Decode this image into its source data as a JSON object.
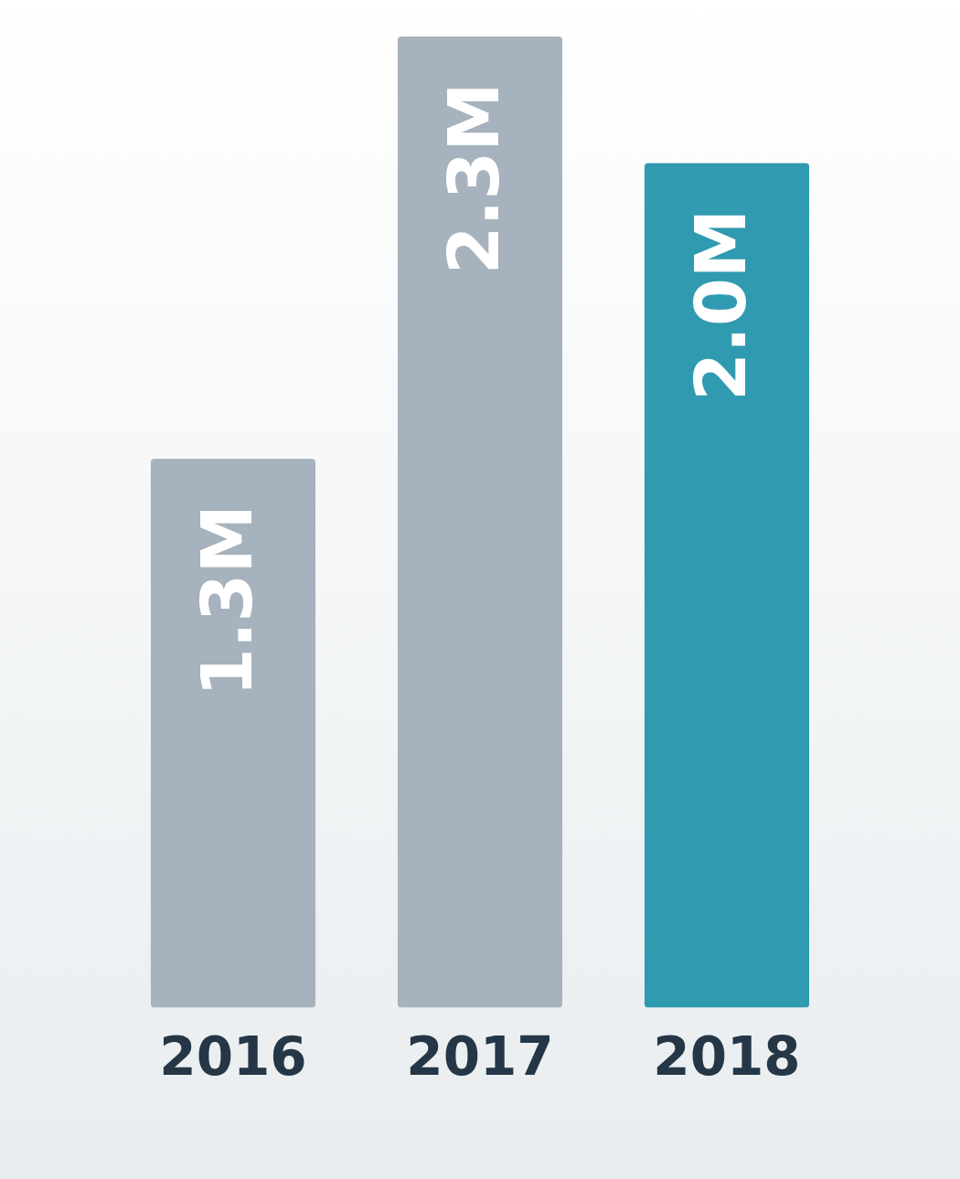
{
  "chart_data": {
    "type": "bar",
    "categories": [
      "2016",
      "2017",
      "2018"
    ],
    "values": [
      1.3,
      2.3,
      2.0
    ],
    "colors": [
      "#a6b2bd",
      "#a6b2bd",
      "#2f9ab0"
    ],
    "value_labels": [
      "1.3M",
      "2.3M",
      "2.0M"
    ],
    "grid": false,
    "legend": false,
    "tick_labels": "x"
  }
}
